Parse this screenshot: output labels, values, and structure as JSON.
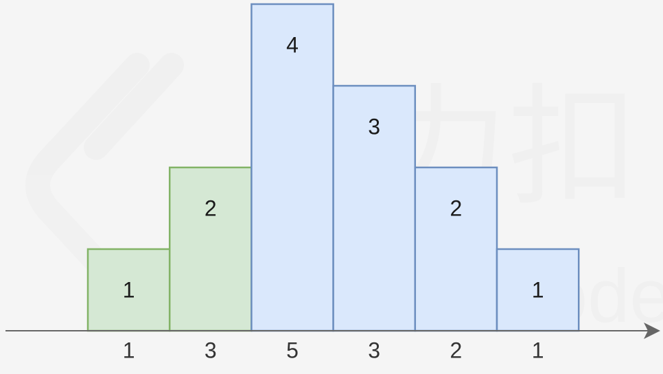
{
  "watermark": {
    "text": "LeetCode",
    "brand": "力扣"
  },
  "colors": {
    "background": "#f5f5f5",
    "green_fill": "#d5e8d4",
    "green_stroke": "#82b366",
    "blue_fill": "#dae8fc",
    "blue_stroke": "#6c8ebf",
    "axis": "#666666"
  },
  "chart_data": {
    "type": "bar",
    "categories": [
      "1",
      "3",
      "5",
      "3",
      "2",
      "1"
    ],
    "values": [
      1,
      2,
      4,
      3,
      2,
      1
    ],
    "bar_labels": [
      "1",
      "2",
      "4",
      "3",
      "2",
      "1"
    ],
    "bar_colors": [
      "green",
      "green",
      "blue",
      "blue",
      "blue",
      "blue"
    ],
    "ylim": [
      0,
      4
    ]
  }
}
